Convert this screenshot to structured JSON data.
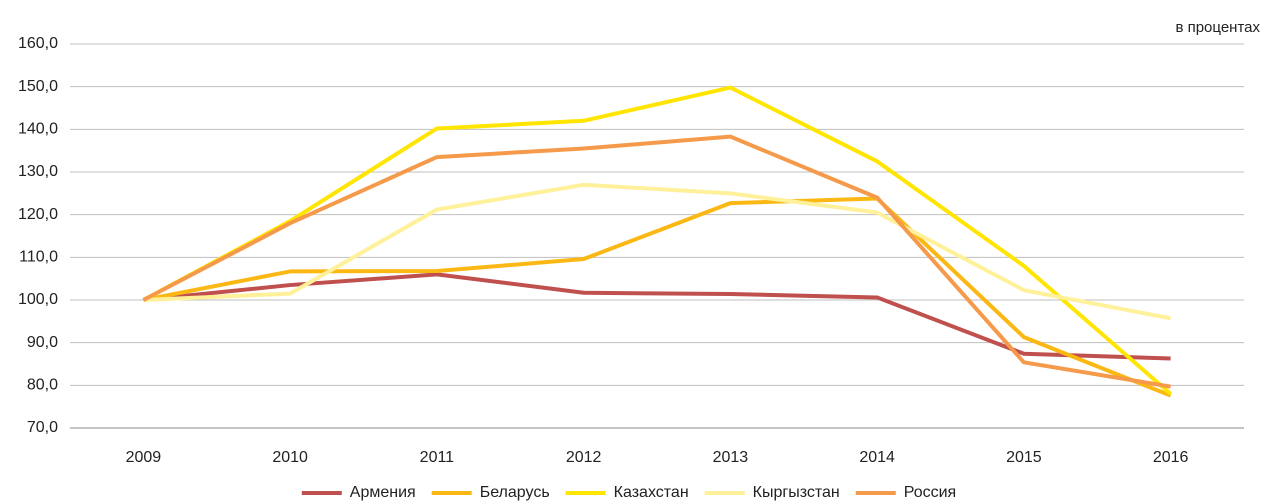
{
  "chart_data": {
    "type": "line",
    "annotation": "в процентах",
    "categories": [
      "2009",
      "2010",
      "2011",
      "2012",
      "2013",
      "2014",
      "2015",
      "2016"
    ],
    "series": [
      {
        "name": "Армения",
        "color": "#c0504d",
        "values": [
          100,
          103.5,
          106,
          101.7,
          101.4,
          100.6,
          87.4,
          86.3
        ]
      },
      {
        "name": "Беларусь",
        "color": "#fbb814",
        "values": [
          100,
          106.7,
          106.8,
          109.6,
          122.7,
          123.8,
          91.3,
          77.6
        ]
      },
      {
        "name": "Казахстан",
        "color": "#ffe500",
        "values": [
          100,
          118.5,
          140.2,
          142,
          149.8,
          132.5,
          108,
          78
        ]
      },
      {
        "name": "Кыргызстан",
        "color": "#fff09a",
        "values": [
          100,
          101.5,
          121.2,
          127,
          125,
          120.5,
          102.3,
          95.7
        ]
      },
      {
        "name": "Россия",
        "color": "#f59a4a",
        "values": [
          100,
          118,
          133.5,
          135.5,
          138.3,
          124,
          85.4,
          79.7
        ]
      }
    ],
    "ylim": [
      70,
      160
    ],
    "yticks": [
      {
        "value": 70,
        "label": "70,0"
      },
      {
        "value": 80,
        "label": "80,0"
      },
      {
        "value": 90,
        "label": "90,0"
      },
      {
        "value": 100,
        "label": "100,0"
      },
      {
        "value": 110,
        "label": "110,0"
      },
      {
        "value": 120,
        "label": "120,0"
      },
      {
        "value": 130,
        "label": "130,0"
      },
      {
        "value": 140,
        "label": "140,0"
      },
      {
        "value": 150,
        "label": "150,0"
      },
      {
        "value": 160,
        "label": "160,0"
      }
    ],
    "grid": true
  }
}
